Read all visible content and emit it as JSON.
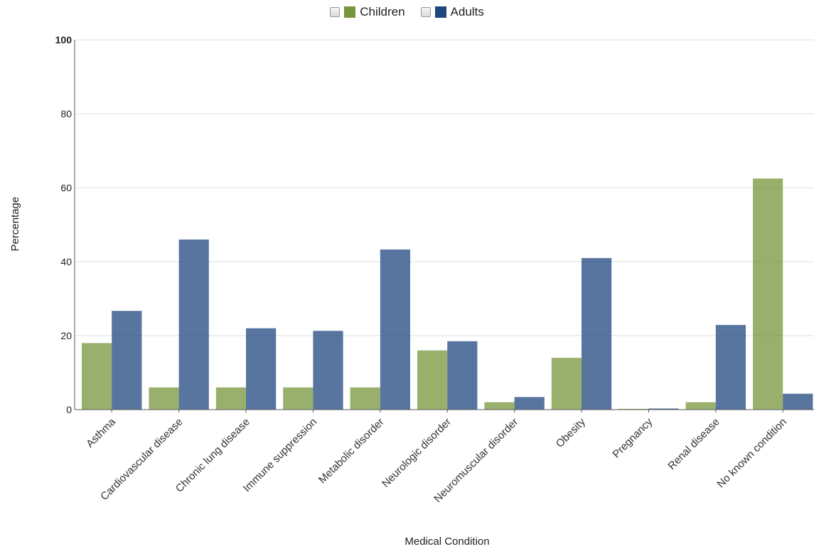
{
  "legend": {
    "items": [
      {
        "label": "Children",
        "color": "#77963c"
      },
      {
        "label": "Adults",
        "color": "#1f477f"
      }
    ]
  },
  "chart_data": {
    "type": "bar",
    "title": "",
    "xlabel": "Medical Condition",
    "ylabel": "Percentage",
    "ylim": [
      0,
      100
    ],
    "yticks": [
      0,
      20,
      40,
      60,
      80,
      100
    ],
    "grid": true,
    "legend_position": "top",
    "categories": [
      "Asthma",
      "Cardiovascular disease",
      "Chronic lung disease",
      "Immune suppression",
      "Metabolic disorder",
      "Neurologic disorder",
      "Neuromuscular disorder",
      "Obesity",
      "Pregnancy",
      "Renal disease",
      "No known condition"
    ],
    "series": [
      {
        "name": "Children",
        "color": "#77963c",
        "values": [
          18,
          6,
          6,
          6,
          6,
          16,
          2,
          14,
          0.2,
          2,
          62.5
        ]
      },
      {
        "name": "Adults",
        "color": "#1f477f",
        "values": [
          26.7,
          46,
          22,
          21.3,
          43.3,
          18.5,
          3.4,
          41,
          0.3,
          22.9,
          4.3
        ]
      }
    ]
  }
}
